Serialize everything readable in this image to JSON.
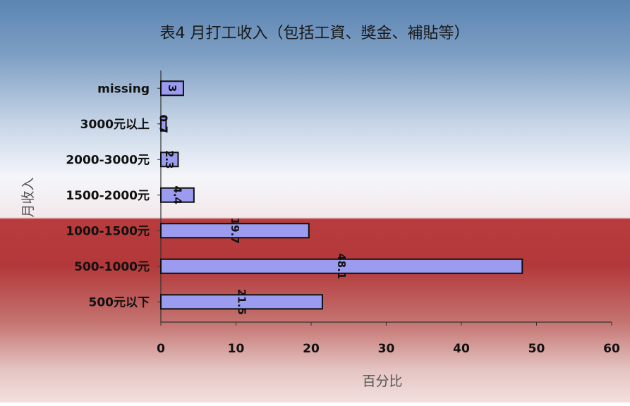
{
  "chart_data": {
    "type": "bar",
    "orientation": "horizontal",
    "title": "表4 月打工收入（包括工資、獎金、補貼等）",
    "xlabel": "百分比",
    "ylabel": "月收入",
    "categories": [
      "missing",
      "3000元以上",
      "2000-3000元",
      "1500-2000元",
      "1000-1500元",
      "500-1000元",
      "500元以下"
    ],
    "values": [
      3,
      0.7,
      2.3,
      4.4,
      19.7,
      48.1,
      21.5
    ],
    "value_labels": [
      "3",
      "0.7",
      "2.3",
      "4.4",
      "19.7",
      "48.1",
      "21.5"
    ],
    "xlim": [
      0,
      60
    ],
    "xticks": [
      "0",
      "10",
      "20",
      "30",
      "40",
      "50",
      "60"
    ],
    "grid": false,
    "legend": "none",
    "colors": {
      "bar_fill": "#9b9bf0",
      "bar_stroke": "#111111",
      "bg_top": "#5c87b5",
      "bg_mid": "#f4f6fa",
      "bg_red": "#b3383a",
      "bg_bottom": "#f2e0de"
    }
  }
}
